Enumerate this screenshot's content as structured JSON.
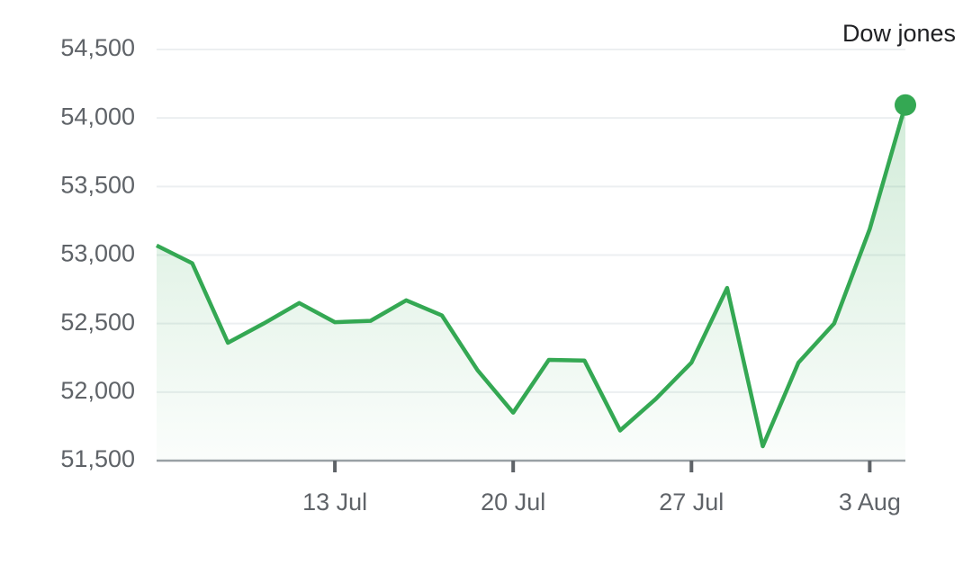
{
  "chart_data": {
    "type": "line",
    "categories": [
      null,
      null,
      null,
      null,
      null,
      "13 Jul",
      null,
      null,
      null,
      null,
      "20 Jul",
      null,
      null,
      null,
      null,
      "27 Jul",
      null,
      null,
      null,
      null,
      "3 Aug",
      null
    ],
    "series": [
      {
        "name": "Dow jones",
        "color": "#34a853",
        "values": [
          53070,
          52940,
          52360,
          52500,
          52650,
          52510,
          52520,
          52670,
          52560,
          52160,
          51850,
          52235,
          52230,
          51720,
          51950,
          52215,
          52760,
          51605,
          52215,
          52500,
          53190,
          54095
        ]
      }
    ],
    "ylim": [
      51500,
      54500
    ],
    "yticks": [
      {
        "value": 51500,
        "label": "51,500"
      },
      {
        "value": 52000,
        "label": "52,000"
      },
      {
        "value": 52500,
        "label": "52,500"
      },
      {
        "value": 53000,
        "label": "53,000"
      },
      {
        "value": 53500,
        "label": "53,500"
      },
      {
        "value": 54000,
        "label": "54,000"
      },
      {
        "value": 54500,
        "label": "54,500"
      }
    ],
    "grid": true,
    "legend": "top-right"
  }
}
